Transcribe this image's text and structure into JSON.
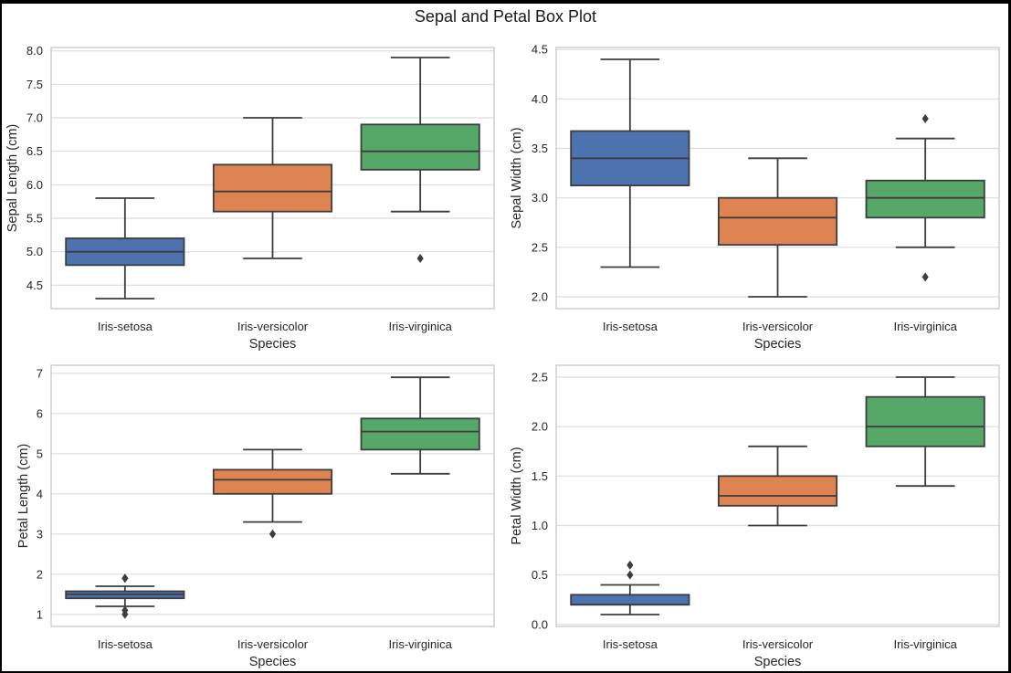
{
  "figure": {
    "title": "Sepal and Petal Box Plot"
  },
  "colors": {
    "Iris-setosa": "#4c72b0",
    "Iris-versicolor": "#dd8452",
    "Iris-virginica": "#55a868",
    "grid": "#dcdcdc",
    "frame": "#cfcfcf",
    "line": "#3d3d3d"
  },
  "chart_data": [
    {
      "type": "box",
      "title": "",
      "xlabel": "Species",
      "ylabel": "Sepal Length (cm)",
      "categories": [
        "Iris-setosa",
        "Iris-versicolor",
        "Iris-virginica"
      ],
      "ylim": [
        4.15,
        8.05
      ],
      "yticks": [
        4.5,
        5.0,
        5.5,
        6.0,
        6.5,
        7.0,
        7.5,
        8.0
      ],
      "ytick_labels": [
        "4.5",
        "5.0",
        "5.5",
        "6.0",
        "6.5",
        "7.0",
        "7.5",
        "8.0"
      ],
      "boxes": [
        {
          "category": "Iris-setosa",
          "whislo": 4.3,
          "q1": 4.8,
          "med": 5.0,
          "q3": 5.2,
          "whishi": 5.8,
          "fliers": []
        },
        {
          "category": "Iris-versicolor",
          "whislo": 4.9,
          "q1": 5.6,
          "med": 5.9,
          "q3": 6.3,
          "whishi": 7.0,
          "fliers": []
        },
        {
          "category": "Iris-virginica",
          "whislo": 5.6,
          "q1": 6.225,
          "med": 6.5,
          "q3": 6.9,
          "whishi": 7.9,
          "fliers": [
            4.9
          ]
        }
      ]
    },
    {
      "type": "box",
      "title": "",
      "xlabel": "Species",
      "ylabel": "Sepal Width (cm)",
      "categories": [
        "Iris-setosa",
        "Iris-versicolor",
        "Iris-virginica"
      ],
      "ylim": [
        1.88,
        4.52
      ],
      "yticks": [
        2.0,
        2.5,
        3.0,
        3.5,
        4.0,
        4.5
      ],
      "ytick_labels": [
        "2.0",
        "2.5",
        "3.0",
        "3.5",
        "4.0",
        "4.5"
      ],
      "boxes": [
        {
          "category": "Iris-setosa",
          "whislo": 2.3,
          "q1": 3.125,
          "med": 3.4,
          "q3": 3.675,
          "whishi": 4.4,
          "fliers": []
        },
        {
          "category": "Iris-versicolor",
          "whislo": 2.0,
          "q1": 2.525,
          "med": 2.8,
          "q3": 3.0,
          "whishi": 3.4,
          "fliers": []
        },
        {
          "category": "Iris-virginica",
          "whislo": 2.5,
          "q1": 2.8,
          "med": 3.0,
          "q3": 3.175,
          "whishi": 3.6,
          "fliers": [
            2.2,
            3.8
          ]
        }
      ]
    },
    {
      "type": "box",
      "title": "",
      "xlabel": "Species",
      "ylabel": "Petal Length (cm)",
      "categories": [
        "Iris-setosa",
        "Iris-versicolor",
        "Iris-virginica"
      ],
      "ylim": [
        0.7,
        7.2
      ],
      "yticks": [
        1,
        2,
        3,
        4,
        5,
        6,
        7
      ],
      "ytick_labels": [
        "1",
        "2",
        "3",
        "4",
        "5",
        "6",
        "7"
      ],
      "boxes": [
        {
          "category": "Iris-setosa",
          "whislo": 1.2,
          "q1": 1.4,
          "med": 1.5,
          "q3": 1.575,
          "whishi": 1.7,
          "fliers": [
            1.0,
            1.1,
            1.9,
            1.9
          ]
        },
        {
          "category": "Iris-versicolor",
          "whislo": 3.3,
          "q1": 4.0,
          "med": 4.35,
          "q3": 4.6,
          "whishi": 5.1,
          "fliers": [
            3.0
          ]
        },
        {
          "category": "Iris-virginica",
          "whislo": 4.5,
          "q1": 5.1,
          "med": 5.55,
          "q3": 5.875,
          "whishi": 6.9,
          "fliers": []
        }
      ]
    },
    {
      "type": "box",
      "title": "",
      "xlabel": "Species",
      "ylabel": "Petal Width (cm)",
      "categories": [
        "Iris-setosa",
        "Iris-versicolor",
        "Iris-virginica"
      ],
      "ylim": [
        -0.02,
        2.62
      ],
      "yticks": [
        0.0,
        0.5,
        1.0,
        1.5,
        2.0,
        2.5
      ],
      "ytick_labels": [
        "0.0",
        "0.5",
        "1.0",
        "1.5",
        "2.0",
        "2.5"
      ],
      "boxes": [
        {
          "category": "Iris-setosa",
          "whislo": 0.1,
          "q1": 0.2,
          "med": 0.2,
          "q3": 0.3,
          "whishi": 0.4,
          "fliers": [
            0.5,
            0.6
          ]
        },
        {
          "category": "Iris-versicolor",
          "whislo": 1.0,
          "q1": 1.2,
          "med": 1.3,
          "q3": 1.5,
          "whishi": 1.8,
          "fliers": []
        },
        {
          "category": "Iris-virginica",
          "whislo": 1.4,
          "q1": 1.8,
          "med": 2.0,
          "q3": 2.3,
          "whishi": 2.5,
          "fliers": []
        }
      ]
    }
  ]
}
